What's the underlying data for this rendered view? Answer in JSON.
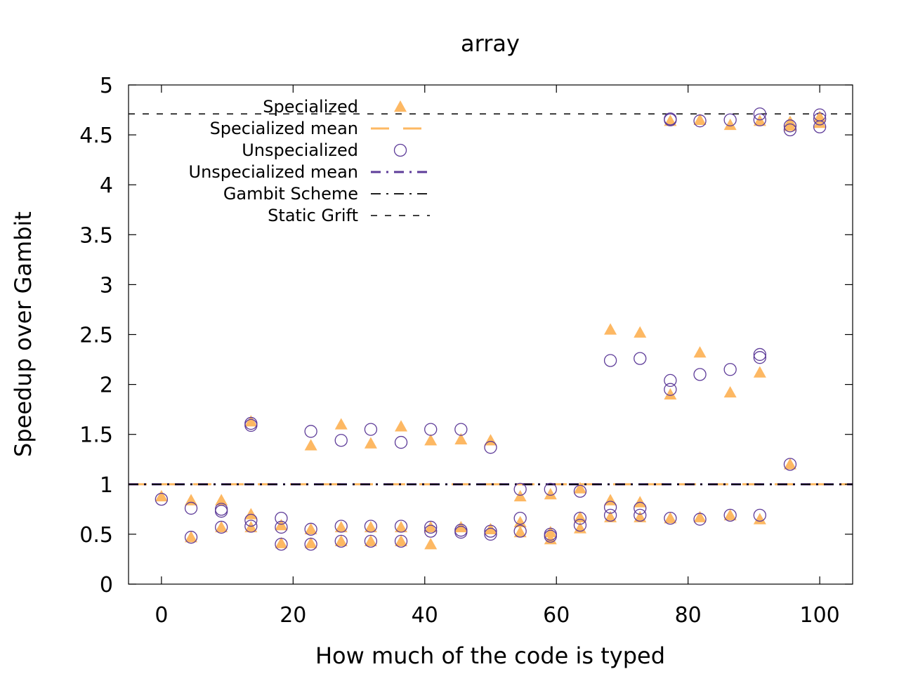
{
  "chart_data": {
    "type": "scatter",
    "title": "array",
    "xlabel": "How much of the code is typed",
    "ylabel": "Speedup over Gambit",
    "xlim": [
      -5,
      105
    ],
    "ylim": [
      0,
      5
    ],
    "xticks": [
      0,
      20,
      40,
      60,
      80,
      100
    ],
    "yticks": [
      0,
      0.5,
      1,
      1.5,
      2,
      2.5,
      3,
      3.5,
      4,
      4.5,
      5
    ],
    "ytick_labels": [
      "0",
      "0.5",
      "1",
      "1.5",
      "2",
      "2.5",
      "3",
      "3.5",
      "4",
      "4.5",
      "5"
    ],
    "grid": false,
    "legend_position": "top-left",
    "series": [
      {
        "name": "Specialized",
        "marker": "filled-triangle",
        "color": "#fdb863",
        "points": [
          [
            0,
            0.88
          ],
          [
            4.5,
            0.84
          ],
          [
            4.5,
            0.47
          ],
          [
            9.1,
            0.84
          ],
          [
            9.1,
            0.57
          ],
          [
            13.6,
            1.63
          ],
          [
            13.6,
            0.7
          ],
          [
            13.6,
            0.57
          ],
          [
            18.2,
            0.59
          ],
          [
            18.2,
            0.41
          ],
          [
            22.7,
            1.39
          ],
          [
            22.7,
            0.55
          ],
          [
            22.7,
            0.41
          ],
          [
            27.3,
            1.6
          ],
          [
            27.3,
            0.57
          ],
          [
            27.3,
            0.43
          ],
          [
            31.8,
            1.41
          ],
          [
            31.8,
            0.57
          ],
          [
            31.8,
            0.43
          ],
          [
            36.4,
            1.58
          ],
          [
            36.4,
            0.57
          ],
          [
            36.4,
            0.43
          ],
          [
            40.9,
            1.44
          ],
          [
            40.9,
            0.57
          ],
          [
            40.9,
            0.4
          ],
          [
            45.5,
            1.45
          ],
          [
            45.5,
            0.57
          ],
          [
            50.0,
            1.44
          ],
          [
            50.0,
            0.55
          ],
          [
            54.5,
            0.88
          ],
          [
            54.5,
            0.62
          ],
          [
            54.5,
            0.52
          ],
          [
            59.1,
            0.9
          ],
          [
            59.1,
            0.52
          ],
          [
            59.1,
            0.45
          ],
          [
            63.6,
            0.96
          ],
          [
            63.6,
            0.67
          ],
          [
            63.6,
            0.56
          ],
          [
            68.2,
            2.55
          ],
          [
            68.2,
            0.84
          ],
          [
            68.2,
            0.67
          ],
          [
            72.7,
            2.52
          ],
          [
            72.7,
            0.82
          ],
          [
            72.7,
            0.67
          ],
          [
            77.3,
            4.64
          ],
          [
            77.3,
            1.9
          ],
          [
            77.3,
            0.66
          ],
          [
            81.8,
            4.65
          ],
          [
            81.8,
            2.32
          ],
          [
            81.8,
            0.67
          ],
          [
            86.4,
            4.6
          ],
          [
            86.4,
            1.92
          ],
          [
            86.4,
            0.69
          ],
          [
            90.9,
            4.64
          ],
          [
            90.9,
            2.12
          ],
          [
            90.9,
            0.65
          ],
          [
            95.5,
            4.63
          ],
          [
            95.5,
            4.59
          ],
          [
            95.5,
            1.2
          ],
          [
            100,
            4.68
          ],
          [
            100,
            4.62
          ]
        ]
      },
      {
        "name": "Specialized mean",
        "line_style": "long-dash",
        "color": "#fdb863",
        "values": [
          1.0
        ]
      },
      {
        "name": "Unspecialized",
        "marker": "open-circle",
        "color": "#5e3c99",
        "points": [
          [
            0,
            0.85
          ],
          [
            4.5,
            0.76
          ],
          [
            4.5,
            0.47
          ],
          [
            9.1,
            0.75
          ],
          [
            9.1,
            0.73
          ],
          [
            9.1,
            0.57
          ],
          [
            13.6,
            1.61
          ],
          [
            13.6,
            1.59
          ],
          [
            13.6,
            0.64
          ],
          [
            13.6,
            0.58
          ],
          [
            18.2,
            0.66
          ],
          [
            18.2,
            0.57
          ],
          [
            18.2,
            0.4
          ],
          [
            22.7,
            1.53
          ],
          [
            22.7,
            0.55
          ],
          [
            22.7,
            0.4
          ],
          [
            27.3,
            1.44
          ],
          [
            27.3,
            0.58
          ],
          [
            27.3,
            0.43
          ],
          [
            31.8,
            1.55
          ],
          [
            31.8,
            0.58
          ],
          [
            31.8,
            0.43
          ],
          [
            36.4,
            1.42
          ],
          [
            36.4,
            0.58
          ],
          [
            36.4,
            0.43
          ],
          [
            40.9,
            1.55
          ],
          [
            40.9,
            0.57
          ],
          [
            40.9,
            0.53
          ],
          [
            45.5,
            1.55
          ],
          [
            45.5,
            0.54
          ],
          [
            45.5,
            0.52
          ],
          [
            50.0,
            1.37
          ],
          [
            50.0,
            0.53
          ],
          [
            50.0,
            0.5
          ],
          [
            54.5,
            0.95
          ],
          [
            54.5,
            0.66
          ],
          [
            54.5,
            0.53
          ],
          [
            59.1,
            0.95
          ],
          [
            59.1,
            0.5
          ],
          [
            59.1,
            0.48
          ],
          [
            63.6,
            0.93
          ],
          [
            63.6,
            0.66
          ],
          [
            63.6,
            0.59
          ],
          [
            68.2,
            2.24
          ],
          [
            68.2,
            0.77
          ],
          [
            68.2,
            0.69
          ],
          [
            72.7,
            2.26
          ],
          [
            72.7,
            0.76
          ],
          [
            72.7,
            0.69
          ],
          [
            77.3,
            4.66
          ],
          [
            77.3,
            4.65
          ],
          [
            77.3,
            2.04
          ],
          [
            77.3,
            1.95
          ],
          [
            77.3,
            0.66
          ],
          [
            81.8,
            4.64
          ],
          [
            81.8,
            2.1
          ],
          [
            81.8,
            0.65
          ],
          [
            86.4,
            4.65
          ],
          [
            86.4,
            2.15
          ],
          [
            86.4,
            0.69
          ],
          [
            90.9,
            4.71
          ],
          [
            90.9,
            4.65
          ],
          [
            90.9,
            2.3
          ],
          [
            90.9,
            2.27
          ],
          [
            90.9,
            0.69
          ],
          [
            95.5,
            4.59
          ],
          [
            95.5,
            4.55
          ],
          [
            95.5,
            1.2
          ],
          [
            100,
            4.7
          ],
          [
            100,
            4.66
          ],
          [
            100,
            4.58
          ]
        ]
      },
      {
        "name": "Unspecialized mean",
        "line_style": "dash-dot",
        "color": "#5e3c99",
        "values": [
          1.0
        ]
      },
      {
        "name": "Gambit Scheme",
        "line_style": "dash-dot",
        "color": "#000000",
        "values": [
          1.0
        ]
      },
      {
        "name": "Static Grift",
        "line_style": "short-dash",
        "color": "#000000",
        "values": [
          4.71
        ]
      }
    ]
  }
}
